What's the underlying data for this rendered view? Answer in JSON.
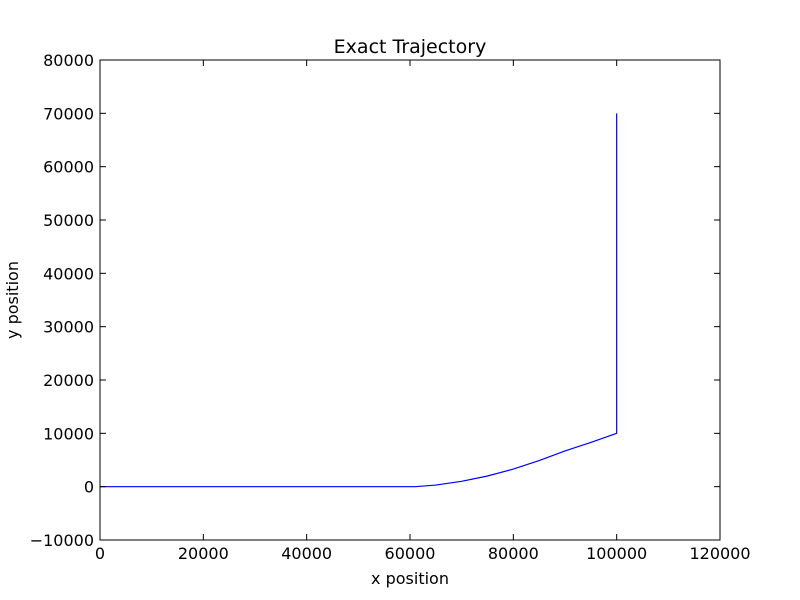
{
  "chart_data": {
    "type": "line",
    "title": "Exact Trajectory",
    "xlabel": "x position",
    "ylabel": "y position",
    "xlim": [
      0,
      120000
    ],
    "ylim": [
      -10000,
      80000
    ],
    "x_ticks": [
      0,
      20000,
      40000,
      60000,
      80000,
      100000,
      120000
    ],
    "y_ticks": [
      -10000,
      0,
      10000,
      20000,
      30000,
      40000,
      50000,
      60000,
      70000,
      80000
    ],
    "x_tick_labels": [
      "0",
      "20000",
      "40000",
      "60000",
      "80000",
      "100000",
      "120000"
    ],
    "y_tick_labels": [
      "−10000",
      "0",
      "10000",
      "20000",
      "30000",
      "40000",
      "50000",
      "60000",
      "70000",
      "80000"
    ],
    "grid": false,
    "legend": "none",
    "series": [
      {
        "color": "#0000ff",
        "x": [
          0,
          10000,
          20000,
          30000,
          40000,
          50000,
          60000,
          61000,
          65000,
          70000,
          75000,
          80000,
          85000,
          90000,
          95000,
          100000,
          100000,
          100000
        ],
        "y": [
          0,
          0,
          0,
          0,
          0,
          0,
          0,
          0,
          300,
          1000,
          2000,
          3300,
          4900,
          6700,
          8300,
          10000,
          40000,
          70000
        ]
      }
    ]
  }
}
